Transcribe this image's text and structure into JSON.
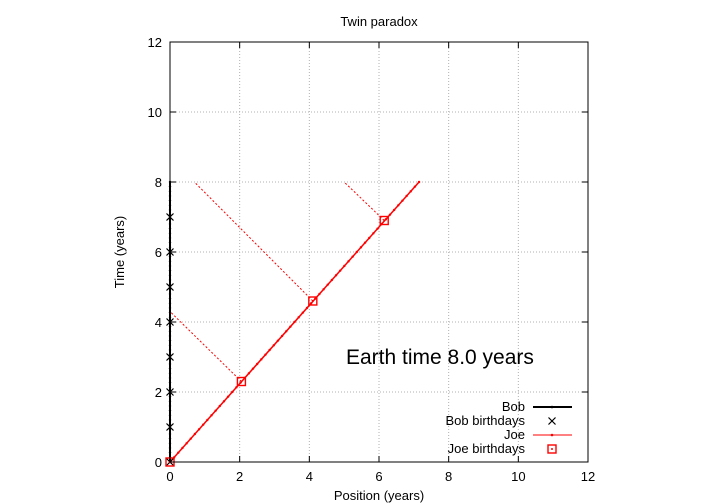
{
  "chart_data": {
    "type": "line",
    "title": "Twin paradox",
    "xlabel": "Position (years)",
    "ylabel": "Time (years)",
    "xlim": [
      0,
      12
    ],
    "ylim": [
      0,
      12
    ],
    "xticks": [
      "0",
      "2",
      "4",
      "6",
      "8",
      "10",
      "12"
    ],
    "yticks": [
      "0",
      "2",
      "4",
      "6",
      "8",
      "10",
      "12"
    ],
    "grid": true,
    "legend_position": "bottom-right",
    "annotation": "Earth time  8.0 years",
    "series": [
      {
        "name": "Bob",
        "color": "#000000",
        "style": "line-with-dots",
        "x": [
          0,
          0
        ],
        "y": [
          0,
          8
        ]
      },
      {
        "name": "Bob birthdays",
        "color": "#000000",
        "style": "cross-markers",
        "x": [
          0,
          0,
          0,
          0,
          0,
          0,
          0,
          0
        ],
        "y": [
          0,
          1,
          2,
          3,
          4,
          5,
          6,
          7
        ]
      },
      {
        "name": "Joe",
        "color": "#ff0000",
        "style": "line-with-dots",
        "x": [
          0,
          7.15
        ],
        "y": [
          0,
          8
        ]
      },
      {
        "name": "Joe birthdays",
        "color": "#ff0000",
        "style": "square-markers",
        "x": [
          0,
          2.05,
          4.1,
          6.15
        ],
        "y": [
          0,
          2.3,
          4.6,
          6.9
        ]
      }
    ],
    "signal_lines": {
      "color": "#ff0000",
      "style": "dotted",
      "segments": [
        {
          "from": [
            2.05,
            2.3
          ],
          "to": [
            0,
            4.3
          ]
        },
        {
          "from": [
            4.1,
            4.6
          ],
          "to": [
            0.7,
            8
          ]
        },
        {
          "from": [
            6.15,
            6.9
          ],
          "to": [
            5.0,
            8
          ]
        }
      ]
    }
  }
}
